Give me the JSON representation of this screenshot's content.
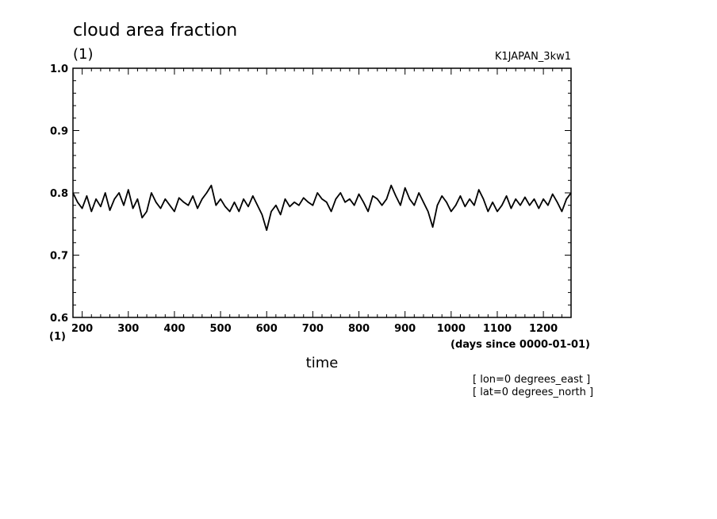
{
  "chart_data": {
    "type": "line",
    "title": "cloud area fraction",
    "y_unit_top": "(1)",
    "x_unit_note": "(1)",
    "dataset": "K1JAPAN_3kw1",
    "xlabel": "time",
    "xunits": "(days since 0000-01-01)",
    "notes": [
      "[ lon=0 degrees_east ]",
      "[ lat=0 degrees_north ]"
    ],
    "xlim": [
      180,
      1260
    ],
    "ylim": [
      0.6,
      1.0
    ],
    "xticks": [
      200,
      300,
      400,
      500,
      600,
      700,
      800,
      900,
      1000,
      1100,
      1200
    ],
    "xtick_labels": [
      "200",
      "300",
      "400",
      "500",
      "600",
      "700",
      "800",
      "900",
      "1000",
      "1100",
      "1200"
    ],
    "yticks": [
      0.6,
      0.7,
      0.8,
      0.9,
      1.0
    ],
    "ytick_labels": [
      "0.6",
      "0.7",
      "0.8",
      "0.9",
      "1.0"
    ],
    "grid": false,
    "series": [
      {
        "color": "#000000",
        "x": [
          180,
          190,
          200,
          210,
          220,
          230,
          240,
          250,
          260,
          270,
          280,
          290,
          300,
          310,
          320,
          330,
          340,
          350,
          360,
          370,
          380,
          390,
          400,
          410,
          420,
          430,
          440,
          450,
          460,
          470,
          480,
          490,
          500,
          510,
          520,
          530,
          540,
          550,
          560,
          570,
          580,
          590,
          600,
          610,
          620,
          630,
          640,
          650,
          660,
          670,
          680,
          690,
          700,
          710,
          720,
          730,
          740,
          750,
          760,
          770,
          780,
          790,
          800,
          810,
          820,
          830,
          840,
          850,
          860,
          870,
          880,
          890,
          900,
          910,
          920,
          930,
          940,
          950,
          960,
          970,
          980,
          990,
          1000,
          1010,
          1020,
          1030,
          1040,
          1050,
          1060,
          1070,
          1080,
          1090,
          1100,
          1110,
          1120,
          1130,
          1140,
          1150,
          1160,
          1170,
          1180,
          1190,
          1200,
          1210,
          1220,
          1230,
          1240,
          1250,
          1260
        ],
        "y": [
          0.8,
          0.785,
          0.775,
          0.795,
          0.77,
          0.79,
          0.778,
          0.8,
          0.772,
          0.79,
          0.8,
          0.78,
          0.805,
          0.775,
          0.79,
          0.76,
          0.77,
          0.8,
          0.785,
          0.775,
          0.79,
          0.78,
          0.77,
          0.792,
          0.785,
          0.78,
          0.795,
          0.775,
          0.79,
          0.8,
          0.812,
          0.78,
          0.79,
          0.778,
          0.77,
          0.785,
          0.77,
          0.79,
          0.778,
          0.795,
          0.78,
          0.765,
          0.74,
          0.77,
          0.78,
          0.765,
          0.79,
          0.778,
          0.785,
          0.78,
          0.792,
          0.785,
          0.78,
          0.8,
          0.79,
          0.785,
          0.77,
          0.79,
          0.8,
          0.785,
          0.79,
          0.78,
          0.798,
          0.785,
          0.77,
          0.795,
          0.79,
          0.78,
          0.79,
          0.812,
          0.795,
          0.78,
          0.808,
          0.79,
          0.78,
          0.8,
          0.785,
          0.77,
          0.745,
          0.78,
          0.795,
          0.785,
          0.77,
          0.78,
          0.795,
          0.778,
          0.79,
          0.78,
          0.805,
          0.79,
          0.77,
          0.785,
          0.77,
          0.78,
          0.795,
          0.775,
          0.79,
          0.78,
          0.793,
          0.78,
          0.79,
          0.775,
          0.79,
          0.78,
          0.798,
          0.785,
          0.77,
          0.79,
          0.8
        ]
      }
    ]
  }
}
